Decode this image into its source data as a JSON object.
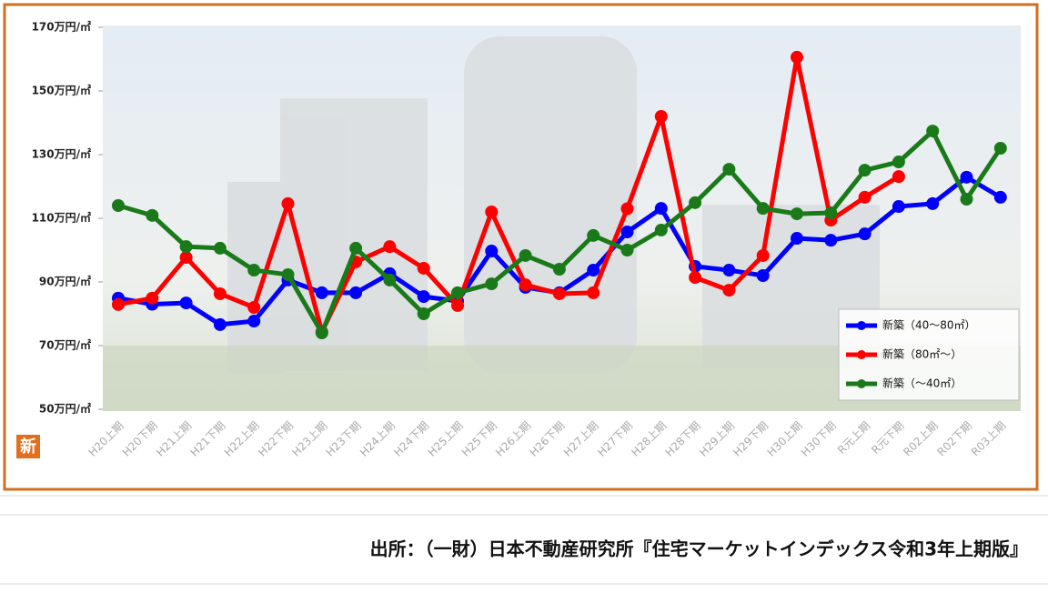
{
  "chart_data": {
    "type": "line",
    "categories": [
      "H20上期",
      "H20下期",
      "H21上期",
      "H21下期",
      "H22上期",
      "H22下期",
      "H23上期",
      "H23下期",
      "H24上期",
      "H24下期",
      "H25上期",
      "H25下期",
      "H26上期",
      "H26下期",
      "H27上期",
      "H27下期",
      "H28上期",
      "H28下期",
      "H29上期",
      "H29下期",
      "H30上期",
      "H30下期",
      "R元上期",
      "R元下期",
      "R02上期",
      "R02下期",
      "R03上期"
    ],
    "series": [
      {
        "name": "新築（40～80㎡）",
        "color": "#0000ff",
        "values": [
          84.9,
          83,
          83.4,
          76.6,
          77.7,
          90.6,
          86.6,
          86.6,
          92.6,
          85.4,
          84,
          99.7,
          88.3,
          86.6,
          93.7,
          105.7,
          113.1,
          94.9,
          93.7,
          92,
          103.7,
          103.1,
          105.1,
          113.7,
          114.6,
          122.9,
          116.6
        ]
      },
      {
        "name": "新築（80㎡～）",
        "color": "#ff0000",
        "values": [
          82.9,
          84.9,
          97.7,
          86.3,
          82,
          114.6,
          74.3,
          96.3,
          101.1,
          94.3,
          82.6,
          112,
          89.1,
          86.3,
          86.6,
          113,
          142,
          91.4,
          87.4,
          98.3,
          160.6,
          109.4,
          116.6,
          123.1,
          null,
          null,
          null
        ]
      },
      {
        "name": "新築（～40㎡）",
        "color": "#1a7a1a",
        "values": [
          114,
          110.9,
          101.1,
          100.6,
          93.7,
          92.3,
          74,
          100.6,
          90.6,
          80,
          86.6,
          89.4,
          98.3,
          94,
          104.6,
          100,
          106.3,
          114.9,
          125.4,
          113.1,
          111.4,
          111.7,
          125.1,
          127.7,
          137.4,
          116,
          132
        ]
      }
    ],
    "ylim": [
      50,
      170
    ],
    "yticks": [
      {
        "value": 50,
        "label": "50万円/㎡"
      },
      {
        "value": 70,
        "label": "70万円/㎡"
      },
      {
        "value": 90,
        "label": "90万円/㎡"
      },
      {
        "value": 110,
        "label": "110万円/㎡"
      },
      {
        "value": 130,
        "label": "130万円/㎡"
      },
      {
        "value": 150,
        "label": "150万円/㎡"
      },
      {
        "value": 170,
        "label": "170万円/㎡"
      }
    ],
    "grid": false,
    "legend": "lower-right",
    "badge": "新"
  },
  "source": "出所：（一財）日本不動産研究所『住宅マーケットインデックス令和3年上期版』"
}
